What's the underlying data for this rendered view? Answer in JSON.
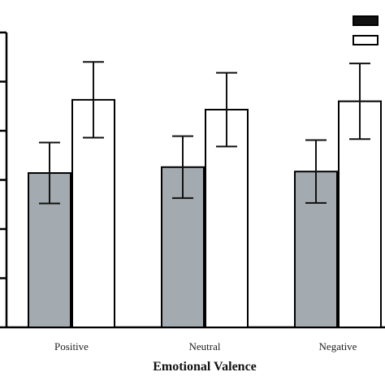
{
  "chart_data": {
    "type": "bar",
    "xlabel": "Emotional Valence",
    "ylabel": "",
    "categories": [
      "Positive",
      "Neutral",
      "Negative"
    ],
    "ylim": [
      0,
      6
    ],
    "y_ticks": [
      0,
      1,
      2,
      3,
      4,
      5,
      6
    ],
    "tick_labels_visible": false,
    "grid": false,
    "legend_position": "top-right",
    "series": [
      {
        "color": "#a4abb0",
        "values": [
          3.14,
          3.26,
          3.17
        ],
        "error": [
          0.62,
          0.63,
          0.64
        ]
      },
      {
        "color": "#ffffff",
        "values": [
          4.63,
          4.43,
          4.6
        ],
        "error": [
          0.77,
          0.75,
          0.77
        ]
      }
    ]
  }
}
